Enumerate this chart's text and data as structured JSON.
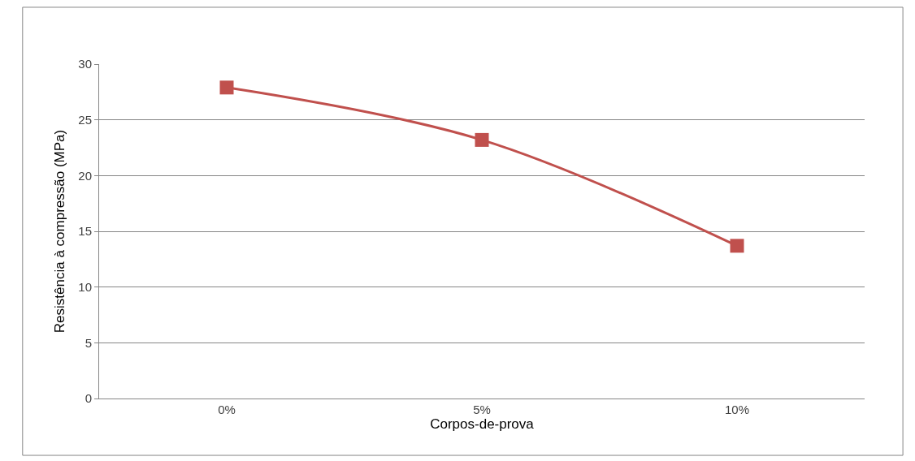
{
  "chart_data": {
    "type": "line",
    "xlabel": "Corpos-de-prova",
    "ylabel": "Resistência à compressão (MPa)",
    "categories": [
      "0%",
      "5%",
      "10%"
    ],
    "series": [
      {
        "color": "#c0504d",
        "values": [
          27.9,
          23.2,
          13.7
        ]
      }
    ],
    "ylim": [
      0,
      30
    ],
    "yticks": [
      0,
      5,
      10,
      15,
      20,
      25,
      30
    ],
    "grid": "y",
    "marker": "square",
    "line_style": "solid"
  }
}
